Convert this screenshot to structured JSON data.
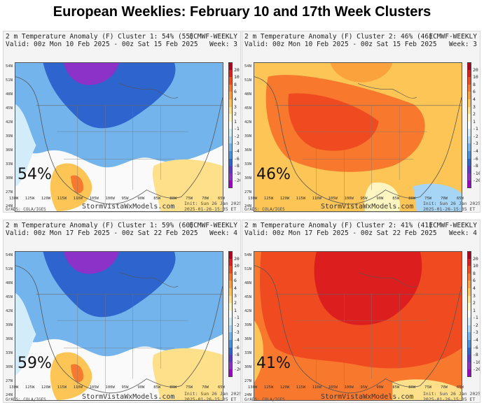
{
  "title": "European Weeklies: February 10 and 17th Week Clusters",
  "site": "StormVistaWxModels.com",
  "grads_credit": "GrADS: COLA/IGES",
  "init_line1": "Init: Sun 26 Jan 2025",
  "init_line2": "2025-01-26-15:35 ET",
  "colorbar": {
    "labels": [
      "20",
      "10",
      "8",
      "6",
      "4",
      "3",
      "2",
      "1",
      "-1",
      "-2",
      "-3",
      "-4",
      "-6",
      "-8",
      "-10",
      "-20"
    ],
    "colors": [
      "#b4001e",
      "#dc1e1e",
      "#f04b20",
      "#f8782d",
      "#fba23c",
      "#fdc555",
      "#fee08b",
      "#fff5c0",
      "#ffffff",
      "#d2ecfa",
      "#a6d5f5",
      "#73b4ec",
      "#4691e0",
      "#2d64cd",
      "#5a3cc8",
      "#8c32c8",
      "#a000c8"
    ]
  },
  "lon_labels": [
    "130W",
    "125W",
    "120W",
    "115W",
    "110W",
    "105W",
    "100W",
    "95W",
    "90W",
    "85W",
    "80W",
    "75W",
    "70W",
    "65W"
  ],
  "lat_labels": [
    "54N",
    "51N",
    "48N",
    "45N",
    "42N",
    "39N",
    "36N",
    "33N",
    "30N",
    "27N",
    "24N"
  ],
  "panels": [
    {
      "header_line1": "2 m Temperature Anomaly (F) Cluster 1: 54% (55)",
      "header_line2": "Valid: 00z Mon 10 Feb 2025 - 00z Sat 15 Feb 2025",
      "model": "ECMWF-WEEKLY",
      "week": "Week: 3",
      "percent": "54%",
      "pattern": "cold"
    },
    {
      "header_line1": "2 m Temperature Anomaly (F) Cluster 2: 46% (46)",
      "header_line2": "Valid: 00z Mon 10 Feb 2025 - 00z Sat 15 Feb 2025",
      "model": "ECMWF-WEEKLY",
      "week": "Week: 3",
      "percent": "46%",
      "pattern": "warm"
    },
    {
      "header_line1": "2 m Temperature Anomaly (F) Cluster 1: 59% (60)",
      "header_line2": "Valid: 00z Mon 17 Feb 2025 - 00z Sat 22 Feb 2025",
      "model": "ECMWF-WEEKLY",
      "week": "Week: 4",
      "percent": "59%",
      "pattern": "cold"
    },
    {
      "header_line1": "2 m Temperature Anomaly (F) Cluster 2: 41% (41)",
      "header_line2": "Valid: 00z Mon 17 Feb 2025 - 00z Sat 22 Feb 2025",
      "model": "ECMWF-WEEKLY",
      "week": "Week: 4",
      "percent": "41%",
      "pattern": "hot"
    }
  ]
}
